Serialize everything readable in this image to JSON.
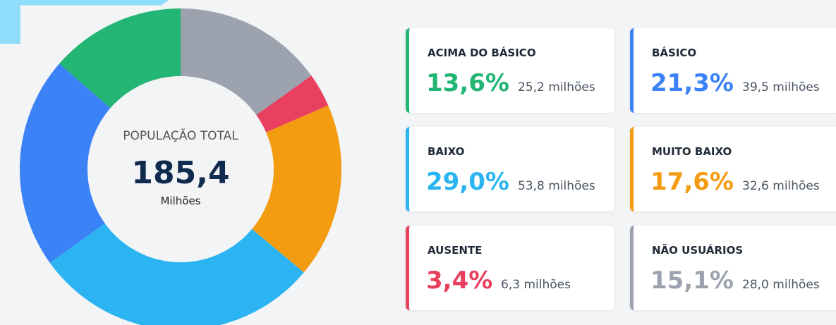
{
  "chart_data": {
    "type": "pie",
    "donut": true,
    "center_title": "POPULAÇÃO TOTAL",
    "center_value": "185,4",
    "center_unit": "Milhões",
    "categories": [
      "ACIMA DO BÁSICO",
      "BÁSICO",
      "BAIXO",
      "MUITO BAIXO",
      "AUSENTE",
      "NÃO USUÁRIOS"
    ],
    "values": [
      13.6,
      21.3,
      29.0,
      17.6,
      3.4,
      15.1
    ],
    "value_labels": [
      "13,6%",
      "21,3%",
      "29,0%",
      "17,6%",
      "3,4%",
      "15,1%"
    ],
    "secondary_labels": [
      "25,2 milhões",
      "39,5 milhões",
      "53,8 milhões",
      "32,6 milhões",
      "6,3 milhões",
      "28,0 milhões"
    ],
    "colors": [
      "#22b573",
      "#3b82f6",
      "#2cb4f2",
      "#f39c12",
      "#e8405e",
      "#9ca3af"
    ]
  }
}
